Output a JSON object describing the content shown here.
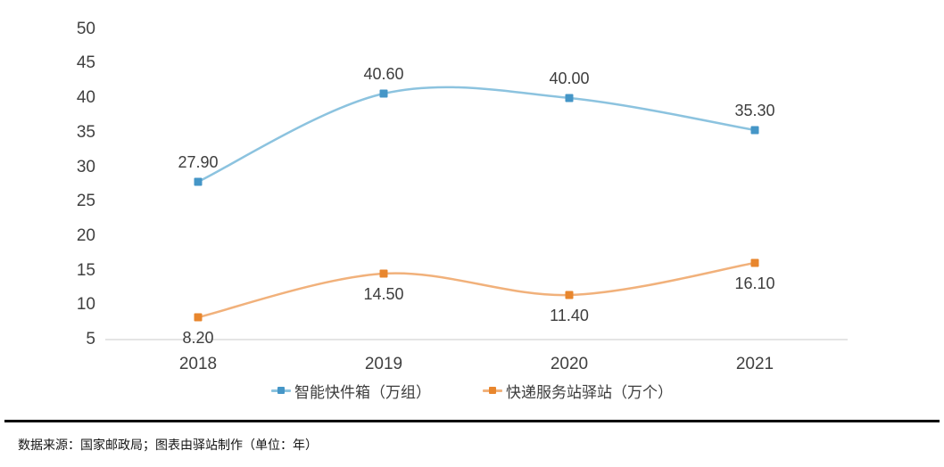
{
  "chart_data": {
    "type": "line",
    "categories": [
      "2018",
      "2019",
      "2020",
      "2021"
    ],
    "series": [
      {
        "name": "智能快件箱（万组）",
        "values": [
          27.9,
          40.6,
          40.0,
          35.3
        ],
        "labels": [
          "27.90",
          "40.60",
          "40.00",
          "35.30"
        ],
        "label_position": "above",
        "line_color": "#8CC3DF",
        "marker_color": "#4596C7"
      },
      {
        "name": "快递服务站驿站（万个）",
        "values": [
          8.2,
          14.5,
          11.4,
          16.1
        ],
        "labels": [
          "8.20",
          "14.50",
          "11.40",
          "16.10"
        ],
        "label_position": "below",
        "line_color": "#F1B17B",
        "marker_color": "#E8862D"
      }
    ],
    "y_ticks": [
      50,
      45,
      40,
      35,
      30,
      25,
      20,
      15,
      10,
      5
    ],
    "ylim": [
      5,
      50
    ],
    "grid": false,
    "legend_position": "bottom",
    "smooth": true,
    "axis_line_color": "#C9C9C9",
    "title": "",
    "xlabel": "",
    "ylabel": ""
  },
  "footer": {
    "source_note": "数据来源：国家邮政局；图表由驿站制作（单位：年）"
  }
}
